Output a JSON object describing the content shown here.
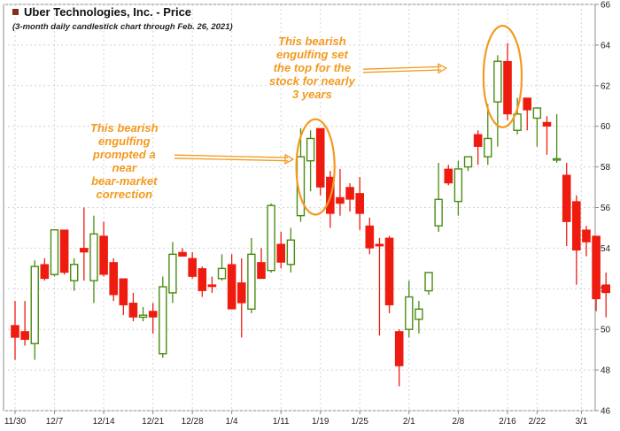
{
  "colors": {
    "up": "#4a8c12",
    "down": "#ee1c10",
    "annotation": "#f39a1e",
    "grid": "#d4d4d4",
    "axis": "#8c8c8c",
    "text": "#222222"
  },
  "chart_data": {
    "type": "candlestick",
    "title": "Uber Technologies, Inc. - Price",
    "subtitle": "(3-month daily candlestick chart through Feb. 26, 2021)",
    "grid": true,
    "ylim": [
      46,
      66
    ],
    "y_ticks": [
      "46",
      "48",
      "50",
      "52",
      "54",
      "56",
      "58",
      "60",
      "62",
      "64",
      "66"
    ],
    "x_ticks": [
      {
        "label": "11/30",
        "at": 0
      },
      {
        "label": "12/7",
        "at": 4
      },
      {
        "label": "12/14",
        "at": 9
      },
      {
        "label": "12/21",
        "at": 14
      },
      {
        "label": "12/28",
        "at": 18
      },
      {
        "label": "1/4",
        "at": 22
      },
      {
        "label": "1/11",
        "at": 27
      },
      {
        "label": "1/19",
        "at": 31
      },
      {
        "label": "1/25",
        "at": 35
      },
      {
        "label": "2/1",
        "at": 40
      },
      {
        "label": "2/8",
        "at": 45
      },
      {
        "label": "2/16",
        "at": 50
      },
      {
        "label": "2/22",
        "at": 53
      },
      {
        "label": "3/1",
        "at": 57.5
      }
    ],
    "candles": [
      {
        "o": 50.2,
        "h": 51.4,
        "l": 48.5,
        "c": 49.6
      },
      {
        "o": 49.9,
        "h": 51.4,
        "l": 49.2,
        "c": 49.5
      },
      {
        "o": 49.3,
        "h": 53.4,
        "l": 48.5,
        "c": 53.1
      },
      {
        "o": 53.2,
        "h": 53.5,
        "l": 52.4,
        "c": 52.5
      },
      {
        "o": 52.7,
        "h": 54.9,
        "l": 52.6,
        "c": 54.9
      },
      {
        "o": 54.9,
        "h": 54.9,
        "l": 52.7,
        "c": 52.8
      },
      {
        "o": 52.4,
        "h": 53.5,
        "l": 51.9,
        "c": 53.2
      },
      {
        "o": 54.0,
        "h": 56.0,
        "l": 52.4,
        "c": 53.8
      },
      {
        "o": 52.4,
        "h": 55.6,
        "l": 51.3,
        "c": 54.7
      },
      {
        "o": 54.6,
        "h": 55.3,
        "l": 52.6,
        "c": 52.7
      },
      {
        "o": 53.3,
        "h": 53.5,
        "l": 51.4,
        "c": 51.7
      },
      {
        "o": 52.5,
        "h": 52.5,
        "l": 50.7,
        "c": 51.2
      },
      {
        "o": 51.3,
        "h": 51.8,
        "l": 50.4,
        "c": 50.6
      },
      {
        "o": 50.6,
        "h": 51.1,
        "l": 50.4,
        "c": 50.7
      },
      {
        "o": 50.9,
        "h": 51.3,
        "l": 49.8,
        "c": 50.6
      },
      {
        "o": 48.8,
        "h": 52.6,
        "l": 48.6,
        "c": 52.1
      },
      {
        "o": 51.8,
        "h": 54.3,
        "l": 51.3,
        "c": 53.7
      },
      {
        "o": 53.8,
        "h": 54.0,
        "l": 53.6,
        "c": 53.6
      },
      {
        "o": 53.5,
        "h": 53.8,
        "l": 52.5,
        "c": 52.6
      },
      {
        "o": 53.0,
        "h": 53.1,
        "l": 51.6,
        "c": 51.9
      },
      {
        "o": 52.2,
        "h": 52.6,
        "l": 51.8,
        "c": 52.1
      },
      {
        "o": 52.5,
        "h": 53.7,
        "l": 52.4,
        "c": 53.0
      },
      {
        "o": 53.2,
        "h": 53.7,
        "l": 51.1,
        "c": 51.0
      },
      {
        "o": 52.3,
        "h": 53.5,
        "l": 49.6,
        "c": 51.3
      },
      {
        "o": 51.0,
        "h": 54.5,
        "l": 50.8,
        "c": 53.7
      },
      {
        "o": 53.3,
        "h": 54.0,
        "l": 52.6,
        "c": 52.5
      },
      {
        "o": 52.9,
        "h": 56.2,
        "l": 52.8,
        "c": 56.1
      },
      {
        "o": 54.2,
        "h": 54.8,
        "l": 53.0,
        "c": 53.3
      },
      {
        "o": 53.2,
        "h": 55.0,
        "l": 52.8,
        "c": 54.4
      },
      {
        "o": 55.6,
        "h": 59.9,
        "l": 55.3,
        "c": 58.5
      },
      {
        "o": 58.3,
        "h": 59.8,
        "l": 56.8,
        "c": 59.4
      },
      {
        "o": 59.9,
        "h": 59.9,
        "l": 56.6,
        "c": 57.0
      },
      {
        "o": 57.5,
        "h": 57.8,
        "l": 55.0,
        "c": 55.7
      },
      {
        "o": 56.5,
        "h": 57.9,
        "l": 55.6,
        "c": 56.2
      },
      {
        "o": 57.0,
        "h": 57.2,
        "l": 55.8,
        "c": 56.4
      },
      {
        "o": 56.7,
        "h": 57.5,
        "l": 54.9,
        "c": 55.7
      },
      {
        "o": 55.1,
        "h": 55.5,
        "l": 53.7,
        "c": 54.0
      },
      {
        "o": 54.2,
        "h": 54.5,
        "l": 49.7,
        "c": 54.1
      },
      {
        "o": 54.5,
        "h": 54.6,
        "l": 50.8,
        "c": 51.2
      },
      {
        "o": 49.9,
        "h": 50.0,
        "l": 47.2,
        "c": 48.2
      },
      {
        "o": 50.0,
        "h": 52.4,
        "l": 49.6,
        "c": 51.6
      },
      {
        "o": 50.5,
        "h": 51.4,
        "l": 49.8,
        "c": 51.0
      },
      {
        "o": 51.9,
        "h": 52.8,
        "l": 51.7,
        "c": 52.8
      },
      {
        "o": 55.1,
        "h": 58.2,
        "l": 54.8,
        "c": 56.4
      },
      {
        "o": 57.9,
        "h": 58.1,
        "l": 57.1,
        "c": 57.2
      },
      {
        "o": 56.3,
        "h": 58.3,
        "l": 55.6,
        "c": 57.9
      },
      {
        "o": 58.0,
        "h": 58.5,
        "l": 57.8,
        "c": 58.5
      },
      {
        "o": 59.6,
        "h": 59.8,
        "l": 58.1,
        "c": 59.0
      },
      {
        "o": 58.5,
        "h": 61.1,
        "l": 58.1,
        "c": 59.4
      },
      {
        "o": 61.2,
        "h": 63.5,
        "l": 59.0,
        "c": 63.2
      },
      {
        "o": 63.2,
        "h": 64.1,
        "l": 60.3,
        "c": 60.6
      },
      {
        "o": 59.8,
        "h": 61.4,
        "l": 59.6,
        "c": 60.6
      },
      {
        "o": 61.4,
        "h": 61.4,
        "l": 59.8,
        "c": 60.8
      },
      {
        "o": 60.4,
        "h": 60.9,
        "l": 59.0,
        "c": 60.9
      },
      {
        "o": 60.2,
        "h": 60.5,
        "l": 58.6,
        "c": 60.0
      },
      {
        "o": 58.4,
        "h": 60.6,
        "l": 58.2,
        "c": 58.4
      },
      {
        "o": 57.6,
        "h": 58.2,
        "l": 54.1,
        "c": 55.3
      },
      {
        "o": 56.3,
        "h": 56.6,
        "l": 52.2,
        "c": 53.9
      },
      {
        "o": 54.9,
        "h": 55.1,
        "l": 53.6,
        "c": 54.3
      },
      {
        "o": 54.6,
        "h": 54.6,
        "l": 50.9,
        "c": 51.5
      },
      {
        "o": 52.2,
        "h": 52.8,
        "l": 50.6,
        "c": 51.8
      }
    ],
    "annotations": [
      {
        "lines": [
          "This bearish",
          "engulfing",
          "prompted a",
          "near",
          "bear-market",
          "correction"
        ]
      },
      {
        "lines": [
          "This bearish",
          "engulfing set",
          "the top for the",
          "stock for nearly",
          "3 years"
        ]
      }
    ]
  }
}
